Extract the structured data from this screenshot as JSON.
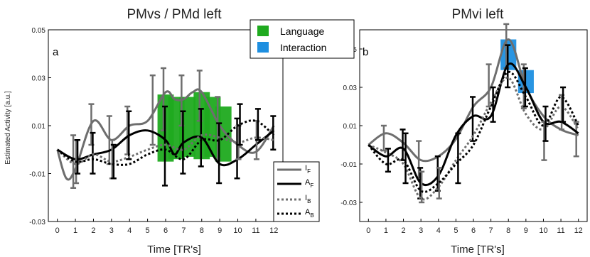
{
  "chart_data": [
    {
      "type": "line",
      "title": "PMvs / PMd left",
      "panel_label": "a",
      "xlabel": "Time [TR's]",
      "ylabel": "Estimated Activity [a.u.]",
      "xlim": [
        -0.5,
        12.5
      ],
      "ylim": [
        -0.03,
        0.05
      ],
      "x_ticks": [
        "0",
        "1",
        "2",
        "3",
        "4",
        "5",
        "6",
        "7",
        "8",
        "9",
        "10",
        "11",
        "12"
      ],
      "y_ticks": [
        "-0.03",
        "-0.01",
        "0.01",
        "0.03",
        "0.05"
      ],
      "y_tick_values": [
        -0.03,
        -0.01,
        0.01,
        0.03,
        0.05
      ],
      "highlights": [
        {
          "type": "Language",
          "x": 6,
          "low": -0.005,
          "high": 0.023
        },
        {
          "type": "Language",
          "x": 6.6,
          "low": -0.004,
          "high": 0.022
        },
        {
          "type": "Language",
          "x": 7.2,
          "low": -0.003,
          "high": 0.022
        },
        {
          "type": "Language",
          "x": 8,
          "low": -0.004,
          "high": 0.024
        },
        {
          "type": "Language",
          "x": 8.6,
          "low": -0.003,
          "high": 0.022
        },
        {
          "type": "Language",
          "x": 9.2,
          "low": -0.005,
          "high": 0.018
        }
      ],
      "series": [
        {
          "name": "I_F",
          "style": "solid",
          "color": "#6e6e6e",
          "points": [
            [
              0,
              0
            ],
            [
              0.5,
              -0.012
            ],
            [
              1,
              -0.008
            ],
            [
              2,
              0.012
            ],
            [
              3,
              0.004
            ],
            [
              4,
              0.01
            ],
            [
              5,
              0.012
            ],
            [
              6,
              0.024
            ],
            [
              6.5,
              0.021
            ],
            [
              7,
              0.021
            ],
            [
              7.5,
              0.024
            ],
            [
              8,
              0.024
            ],
            [
              9,
              0.01
            ],
            [
              10,
              0.002
            ],
            [
              11,
              -0.001
            ],
            [
              12,
              0.01
            ]
          ],
          "errors": [
            [
              1,
              -0.016,
              0.006
            ],
            [
              2,
              0.002,
              0.019
            ],
            [
              3,
              -0.006,
              0.014
            ],
            [
              4,
              -0.002,
              0.018
            ],
            [
              5.4,
              0.002,
              0.031
            ],
            [
              6,
              0.008,
              0.034
            ],
            [
              7,
              0.01,
              0.031
            ],
            [
              8,
              0.012,
              0.033
            ],
            [
              9,
              -0.004,
              0.022
            ]
          ]
        },
        {
          "name": "A_F",
          "style": "solid",
          "color": "#000000",
          "points": [
            [
              0,
              0
            ],
            [
              1,
              -0.004
            ],
            [
              2,
              -0.002
            ],
            [
              3,
              0
            ],
            [
              4,
              0.006
            ],
            [
              5,
              0.008
            ],
            [
              6,
              0.004
            ],
            [
              6.5,
              -0.002
            ],
            [
              7,
              0.003
            ],
            [
              8,
              0.005
            ],
            [
              9,
              -0.006
            ],
            [
              10,
              -0.004
            ],
            [
              11,
              0.002
            ],
            [
              12,
              0.008
            ]
          ],
          "errors": [
            [
              2,
              -0.01,
              0.007
            ],
            [
              4,
              -0.004,
              0.016
            ],
            [
              6,
              -0.015,
              0.018
            ],
            [
              7,
              -0.01,
              0.016
            ],
            [
              8,
              -0.007,
              0.017
            ],
            [
              9,
              -0.014,
              0.011
            ],
            [
              10,
              -0.012,
              0.013
            ],
            [
              12,
              0,
              0.014
            ]
          ]
        },
        {
          "name": "I_B",
          "style": "dotted",
          "color": "#6e6e6e",
          "points": [
            [
              0,
              0
            ],
            [
              1,
              -0.006
            ],
            [
              2,
              -0.002
            ],
            [
              3,
              -0.005
            ],
            [
              4,
              -0.003
            ],
            [
              5,
              0
            ],
            [
              6,
              0.002
            ],
            [
              7,
              0
            ],
            [
              8,
              0.006
            ],
            [
              9,
              0.005
            ],
            [
              10,
              0.003
            ],
            [
              11,
              0.005
            ],
            [
              12,
              0.004
            ]
          ],
          "errors": [
            [
              1,
              -0.014,
              0.004
            ],
            [
              3,
              -0.012,
              0.004
            ],
            [
              10,
              -0.004,
              0.01
            ],
            [
              11,
              -0.004,
              0.012
            ]
          ]
        },
        {
          "name": "A_B",
          "style": "dotted",
          "color": "#000000",
          "points": [
            [
              0,
              0
            ],
            [
              1,
              -0.005
            ],
            [
              2,
              -0.004
            ],
            [
              3,
              -0.006
            ],
            [
              4,
              -0.006
            ],
            [
              5,
              -0.002
            ],
            [
              6,
              0
            ],
            [
              7,
              -0.004
            ],
            [
              8,
              0.004
            ],
            [
              9,
              0.004
            ],
            [
              10,
              0.01
            ],
            [
              11,
              0.012
            ],
            [
              12,
              0.006
            ]
          ],
          "errors": [
            [
              1,
              -0.01,
              0.004
            ],
            [
              3,
              -0.012,
              0.002
            ],
            [
              10,
              0.002,
              0.019
            ],
            [
              11,
              0.004,
              0.017
            ]
          ]
        }
      ]
    },
    {
      "type": "line",
      "title": "PMvi left",
      "panel_label": "b",
      "xlabel": "Time [TR's]",
      "ylabel": "",
      "xlim": [
        -0.5,
        12.5
      ],
      "ylim": [
        -0.04,
        0.06
      ],
      "x_ticks": [
        "0",
        "1",
        "2",
        "3",
        "4",
        "5",
        "6",
        "7",
        "8",
        "9",
        "10",
        "11",
        "12"
      ],
      "y_ticks": [
        "-0.03",
        "-0.01",
        "0.01",
        "0.03",
        "0.05"
      ],
      "y_tick_values": [
        -0.03,
        -0.01,
        0.01,
        0.03,
        0.05
      ],
      "highlights": [
        {
          "type": "Interaction",
          "x": 8,
          "low": 0.039,
          "high": 0.055
        },
        {
          "type": "Interaction",
          "x": 9,
          "low": 0.027,
          "high": 0.039
        }
      ],
      "series": [
        {
          "name": "I_F",
          "style": "solid",
          "color": "#6e6e6e",
          "points": [
            [
              0,
              0
            ],
            [
              1,
              0.006
            ],
            [
              2,
              0.001
            ],
            [
              3,
              -0.008
            ],
            [
              4,
              -0.006
            ],
            [
              5,
              0.003
            ],
            [
              6,
              0.02
            ],
            [
              7,
              0.03
            ],
            [
              8,
              0.055
            ],
            [
              9,
              0.03
            ],
            [
              10,
              0.015
            ],
            [
              11,
              0.008
            ],
            [
              12,
              0.005
            ]
          ],
          "errors": [
            [
              1,
              -0.003,
              0.01
            ],
            [
              3,
              -0.017,
              0.002
            ],
            [
              7,
              0.02,
              0.042
            ],
            [
              8,
              0.04,
              0.063
            ],
            [
              9,
              0.019,
              0.042
            ],
            [
              12,
              -0.006,
              0.012
            ]
          ]
        },
        {
          "name": "A_F",
          "style": "solid",
          "color": "#000000",
          "points": [
            [
              0,
              0
            ],
            [
              1,
              -0.006
            ],
            [
              2,
              -0.002
            ],
            [
              3,
              -0.02
            ],
            [
              4,
              -0.016
            ],
            [
              5,
              0.005
            ],
            [
              6,
              0.015
            ],
            [
              7,
              0.015
            ],
            [
              8,
              0.042
            ],
            [
              9,
              0.03
            ],
            [
              10,
              0.012
            ],
            [
              11,
              0.012
            ],
            [
              12,
              0.006
            ]
          ],
          "errors": [
            [
              2,
              -0.008,
              0.008
            ],
            [
              3,
              -0.028,
              -0.012
            ],
            [
              4,
              -0.024,
              -0.006
            ],
            [
              6,
              0.002,
              0.025
            ],
            [
              8,
              0.03,
              0.052
            ],
            [
              9,
              0.02,
              0.04
            ]
          ]
        },
        {
          "name": "I_B",
          "style": "dotted",
          "color": "#6e6e6e",
          "points": [
            [
              0,
              0
            ],
            [
              1,
              -0.004
            ],
            [
              2,
              -0.01
            ],
            [
              3,
              -0.028
            ],
            [
              4,
              -0.022
            ],
            [
              5,
              -0.008
            ],
            [
              6,
              0.005
            ],
            [
              7,
              0.022
            ],
            [
              8,
              0.035
            ],
            [
              9,
              0.016
            ],
            [
              10,
              0.008
            ],
            [
              11,
              0.02
            ],
            [
              12,
              0.008
            ]
          ],
          "errors": [
            [
              3,
              -0.03,
              -0.014
            ],
            [
              4,
              -0.028,
              -0.012
            ],
            [
              10,
              -0.008,
              0.012
            ],
            [
              11,
              0.008,
              0.026
            ]
          ]
        },
        {
          "name": "A_B",
          "style": "dotted",
          "color": "#000000",
          "points": [
            [
              0,
              0
            ],
            [
              1,
              -0.01
            ],
            [
              2,
              -0.008
            ],
            [
              3,
              -0.024
            ],
            [
              4,
              -0.02
            ],
            [
              5,
              -0.01
            ],
            [
              6,
              0
            ],
            [
              7,
              0.02
            ],
            [
              8,
              0.038
            ],
            [
              9,
              0.025
            ],
            [
              10,
              0.01
            ],
            [
              11,
              0.025
            ],
            [
              12,
              0.01
            ]
          ],
          "errors": [
            [
              1,
              -0.014,
              -0.002
            ],
            [
              2,
              -0.02,
              0.006
            ],
            [
              5,
              -0.02,
              0.006
            ],
            [
              7,
              0.012,
              0.03
            ],
            [
              10,
              0.002,
              0.02
            ],
            [
              11,
              0.012,
              0.03
            ]
          ]
        }
      ]
    }
  ],
  "legend_highlight": [
    {
      "label": "Language",
      "color": "#1faa1f"
    },
    {
      "label": "Interaction",
      "color": "#1e8fe0"
    }
  ],
  "legend_lines": [
    {
      "main": "I",
      "sub": "F",
      "style": "solid",
      "color": "#6e6e6e"
    },
    {
      "main": "A",
      "sub": "F",
      "style": "solid",
      "color": "#000000"
    },
    {
      "main": "I",
      "sub": "B",
      "style": "dotted",
      "color": "#6e6e6e"
    },
    {
      "main": "A",
      "sub": "B",
      "style": "dotted",
      "color": "#000000"
    }
  ],
  "colors": {
    "language": "#1faa1f",
    "interaction": "#1e8fe0",
    "gray": "#6e6e6e",
    "black": "#000000"
  }
}
